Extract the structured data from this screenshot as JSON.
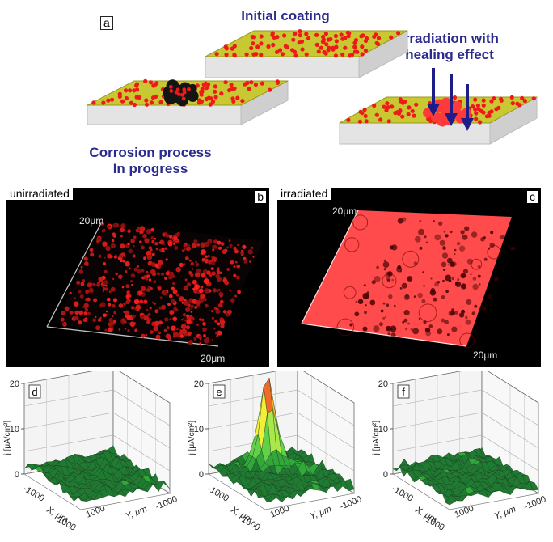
{
  "top": {
    "label_a": "a",
    "initial_coating": "Initial coating",
    "irradiation_line1": "Irradiation with",
    "irradiation_line2": "healing effect",
    "corrosion_line1": "Corrosion process",
    "corrosion_line2": "In progress"
  },
  "micrographs": {
    "b": {
      "tag": "unirradiated",
      "letter": "b",
      "scale_top": "20μm",
      "scale_bottom": "20μm"
    },
    "c": {
      "tag": "irradiated",
      "letter": "c",
      "scale_top": "20μm",
      "scale_bottom": "20μm"
    }
  },
  "plots": [
    {
      "letter": "d",
      "zlabel": "j [μA/cm²]",
      "ticks_z": [
        "20",
        "10",
        "0"
      ],
      "x_ticks": [
        "-1000",
        "1000"
      ],
      "x_label": "X, μm",
      "y_ticks": [
        "1000",
        "-1000"
      ],
      "y_label": "Y, μm",
      "has_peak": false
    },
    {
      "letter": "e",
      "zlabel": "j [μA/cm²]",
      "ticks_z": [
        "20",
        "10",
        "0"
      ],
      "x_ticks": [
        "-1000",
        "1000"
      ],
      "x_label": "X, μm",
      "y_ticks": [
        "1000",
        "-1000"
      ],
      "y_label": "Y, μm",
      "has_peak": true
    },
    {
      "letter": "f",
      "zlabel": "j [μA/cm²]",
      "ticks_z": [
        "20",
        "10",
        "0"
      ],
      "x_ticks": [
        "-1000",
        "1000"
      ],
      "x_label": "X, μm",
      "y_ticks": [
        "1000",
        "-1000"
      ],
      "y_label": "Y, μm",
      "has_peak": false
    }
  ],
  "colors": {
    "coating": "#c8c832",
    "particle": "#ee1a1a",
    "damage": "#141414",
    "substrate": "#e4e4e4",
    "text_blue": "#2b2b8f",
    "laser_glow": "#ff3a3a"
  }
}
